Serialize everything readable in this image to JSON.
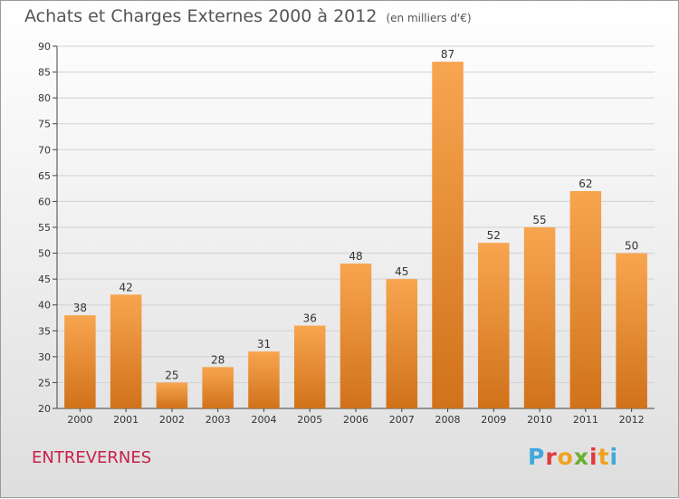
{
  "header": {
    "title": "Achats et Charges Externes 2000 à 2012",
    "subtitle": "(en milliers d'€)"
  },
  "footer": {
    "commune": "ENTREVERNES",
    "brand_letters": [
      "P",
      "r",
      "o",
      "x",
      "i",
      "t",
      "i"
    ],
    "brand_colors": [
      "#3fa9dd",
      "#e23a3a",
      "#f0a21f",
      "#6ab02e",
      "#e23a3a",
      "#f0a21f",
      "#3fa9dd"
    ]
  },
  "chart_data": {
    "type": "bar",
    "categories": [
      "2000",
      "2001",
      "2002",
      "2003",
      "2004",
      "2005",
      "2006",
      "2007",
      "2008",
      "2009",
      "2010",
      "2011",
      "2012"
    ],
    "values": [
      38,
      42,
      25,
      28,
      31,
      36,
      48,
      45,
      87,
      52,
      55,
      62,
      50
    ],
    "title": "Achats et Charges Externes 2000 à 2012",
    "ylim": [
      20,
      90
    ],
    "yticks": [
      20,
      25,
      30,
      35,
      40,
      45,
      50,
      55,
      60,
      65,
      70,
      75,
      80,
      85,
      90
    ],
    "grid": true,
    "bar_color_light": "#f8a550",
    "bar_color_dark": "#d0721a"
  }
}
